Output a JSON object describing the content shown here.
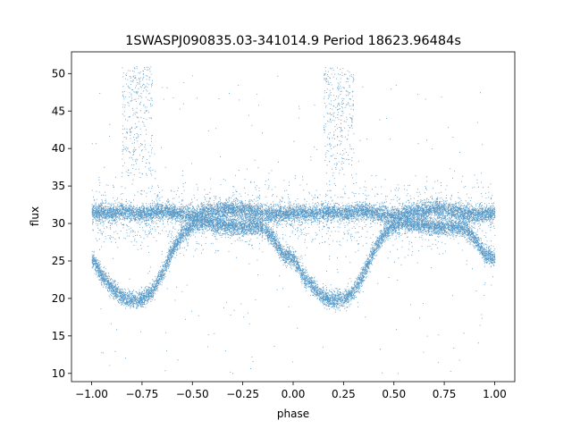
{
  "chart_data": {
    "type": "scatter",
    "title": "1SWASPJ090835.03-341014.9 Period 18623.96484s",
    "xlabel": "phase",
    "ylabel": "flux",
    "xlim": [
      -1.1,
      1.1
    ],
    "ylim": [
      8.9,
      52.9
    ],
    "xticks": [
      -1.0,
      -0.75,
      -0.5,
      -0.25,
      0.0,
      0.25,
      0.5,
      0.75,
      1.0
    ],
    "xtick_labels": [
      "−1.00",
      "−0.75",
      "−0.50",
      "−0.25",
      "0.00",
      "0.25",
      "0.50",
      "0.75",
      "1.00"
    ],
    "yticks": [
      10,
      15,
      20,
      25,
      30,
      35,
      40,
      45,
      50
    ],
    "ytick_labels": [
      "10",
      "15",
      "20",
      "25",
      "30",
      "35",
      "40",
      "45",
      "50"
    ],
    "grid": false,
    "legend": "none",
    "point_color": "#1f77b4",
    "series": [
      {
        "values_description_free": true,
        "x": [
          -1.0,
          -0.95,
          -0.9,
          -0.85,
          -0.8,
          -0.75,
          -0.7,
          -0.65,
          -0.6,
          -0.55,
          -0.5,
          -0.45,
          -0.4,
          -0.35,
          -0.3,
          -0.25,
          -0.2,
          -0.15,
          -0.1,
          -0.05,
          0.0,
          0.05,
          0.1,
          0.15,
          0.2,
          0.25,
          0.3,
          0.35,
          0.4,
          0.45,
          0.5,
          0.55,
          0.6,
          0.65,
          0.7,
          0.75,
          0.8,
          0.85,
          0.9,
          0.95,
          1.0
        ],
        "y_eclipse_branch": [
          25.5,
          23.0,
          21.5,
          20.2,
          19.8,
          20.0,
          21.0,
          23.5,
          26.5,
          28.7,
          29.8,
          30.2,
          30.0,
          29.8,
          29.6,
          29.5,
          29.7,
          29.4,
          28.0,
          25.8,
          25.5,
          23.0,
          21.5,
          20.2,
          19.8,
          20.0,
          21.0,
          23.5,
          26.5,
          28.7,
          29.8,
          30.2,
          30.0,
          29.8,
          29.6,
          29.5,
          29.7,
          29.4,
          28.0,
          25.8,
          25.5
        ],
        "y_bright_branch": [
          31.5,
          31.5,
          31.4,
          31.6,
          31.5,
          31.3,
          31.5,
          31.8,
          31.5,
          31.2,
          31.0,
          31.4,
          31.6,
          31.8,
          32.0,
          31.8,
          31.6,
          31.4,
          31.2,
          31.3,
          31.5,
          31.5,
          31.4,
          31.6,
          31.5,
          31.3,
          31.5,
          31.8,
          31.5,
          31.2,
          31.0,
          31.4,
          31.6,
          31.8,
          32.0,
          31.8,
          31.6,
          31.4,
          31.2,
          31.3,
          31.5
        ],
        "flare_x_ranges": [
          [
            -0.85,
            -0.7
          ],
          [
            0.15,
            0.3
          ]
        ],
        "flare_y_range": [
          36,
          51
        ]
      }
    ]
  }
}
